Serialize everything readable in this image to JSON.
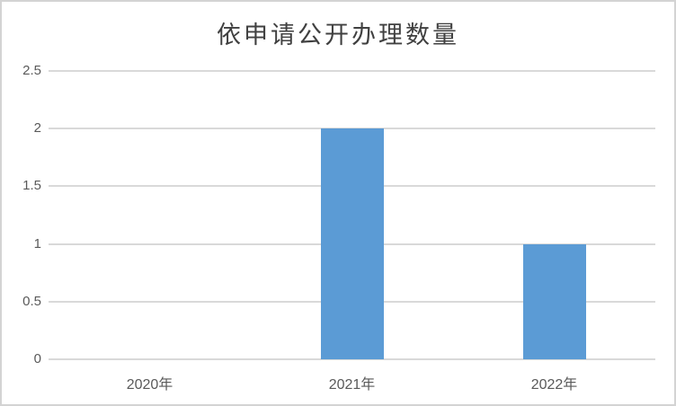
{
  "chart_data": {
    "type": "bar",
    "title": "依申请公开办理数量",
    "categories": [
      "2020年",
      "2021年",
      "2022年"
    ],
    "values": [
      0,
      2,
      1
    ],
    "xlabel": "",
    "ylabel": "",
    "ylim": [
      0,
      2.5
    ],
    "yticks": [
      "0",
      "0.5",
      "1",
      "1.5",
      "2",
      "2.5"
    ],
    "grid": true,
    "legend": "none",
    "bar_color": "#5B9BD5",
    "grid_color": "#D9D9D9",
    "label_color": "#595959",
    "title_color": "#404040",
    "frame_border_color": "#D3D3D3",
    "background_color": "#FFFFFF"
  }
}
